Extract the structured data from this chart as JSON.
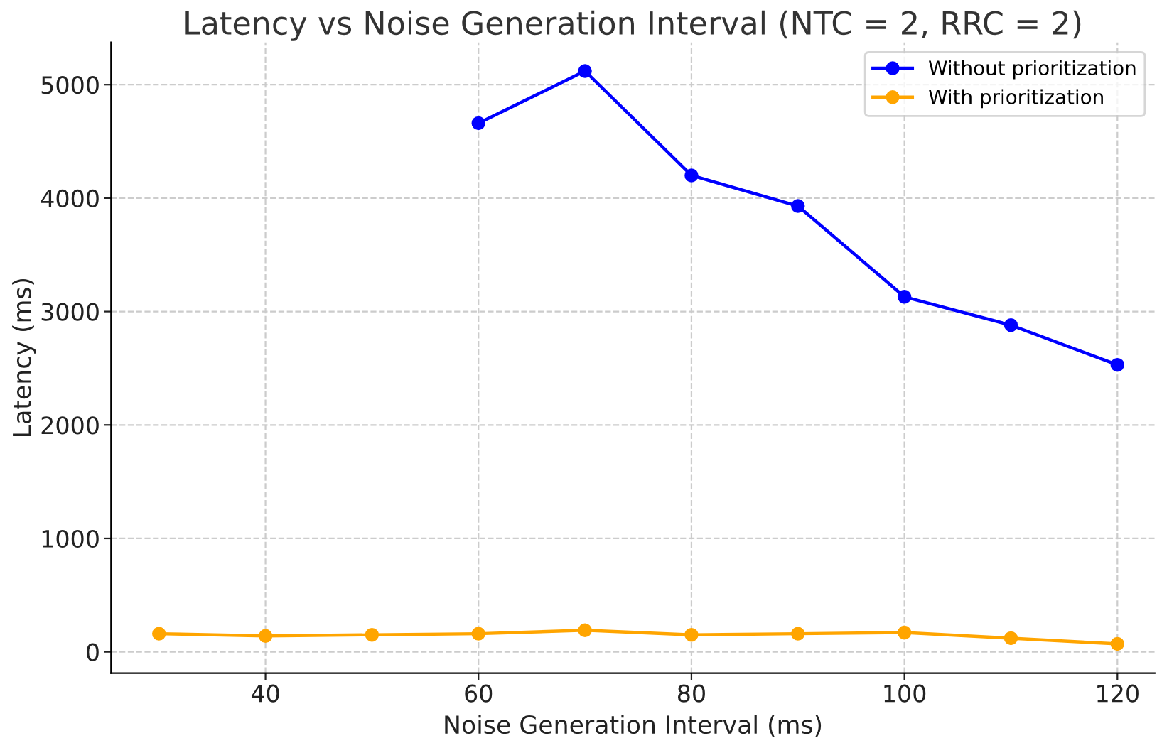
{
  "chart_data": {
    "type": "line",
    "title": "Latency vs Noise Generation Interval (NTC = 2, RRC = 2)",
    "xlabel": "Noise Generation Interval (ms)",
    "ylabel": "Latency (ms)",
    "series": [
      {
        "name": "Without prioritization",
        "color": "#0000ff",
        "x": [
          60,
          70,
          80,
          90,
          100,
          110,
          120
        ],
        "values": [
          4660,
          5120,
          4200,
          3930,
          3130,
          2880,
          2530
        ]
      },
      {
        "name": "With prioritization",
        "color": "#ffa500",
        "x": [
          30,
          40,
          50,
          60,
          70,
          80,
          90,
          100,
          110,
          120
        ],
        "values": [
          160,
          140,
          150,
          160,
          190,
          150,
          160,
          170,
          120,
          70
        ]
      }
    ],
    "xlim": [
      25.5,
      123.5
    ],
    "ylim": [
      -188,
      5373
    ],
    "xticks": [
      40,
      60,
      80,
      100,
      120
    ],
    "yticks": [
      0,
      1000,
      2000,
      3000,
      4000,
      5000
    ],
    "grid": true,
    "legend": "top right",
    "marker": "circle",
    "line_style": "solid"
  }
}
